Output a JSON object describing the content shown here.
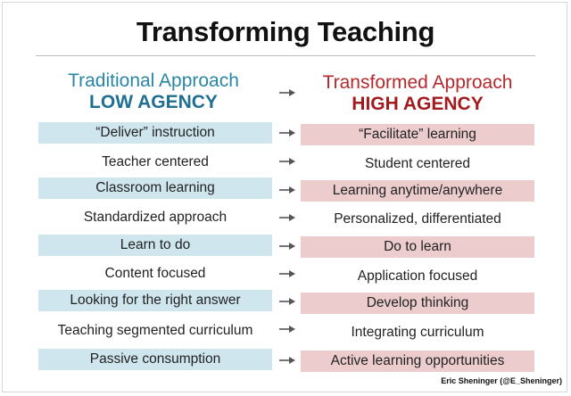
{
  "title": "Transforming Teaching",
  "left_heading": {
    "line1": "Traditional Approach",
    "line2": "LOW AGENCY"
  },
  "right_heading": {
    "line1": "Transformed Approach",
    "line2": "HIGH AGENCY"
  },
  "colors": {
    "left_accent": "#2a86a6",
    "right_accent": "#b5282b",
    "left_shade": "#cfe6ef",
    "right_shade": "#eccccd"
  },
  "rows": [
    {
      "left": "“Deliver” instruction",
      "right": "“Facilitate” learning",
      "shaded": true
    },
    {
      "left": "Teacher centered",
      "right": "Student centered",
      "shaded": false
    },
    {
      "left": "Classroom learning",
      "right": "Learning anytime/anywhere",
      "shaded": true
    },
    {
      "left": "Standardized approach",
      "right": "Personalized, differentiated",
      "shaded": false
    },
    {
      "left": "Learn to do",
      "right": "Do to learn",
      "shaded": true
    },
    {
      "left": "Content focused",
      "right": "Application focused",
      "shaded": false
    },
    {
      "left": "Looking for the right answer",
      "right": "Develop thinking",
      "shaded": true
    },
    {
      "left": "Teaching segmented curriculum",
      "right": "Integrating curriculum",
      "shaded": false
    },
    {
      "left": "Passive consumption",
      "right": "Active learning opportunities",
      "shaded": true
    }
  ],
  "credit": "Eric Sheninger (@E_Sheninger)"
}
